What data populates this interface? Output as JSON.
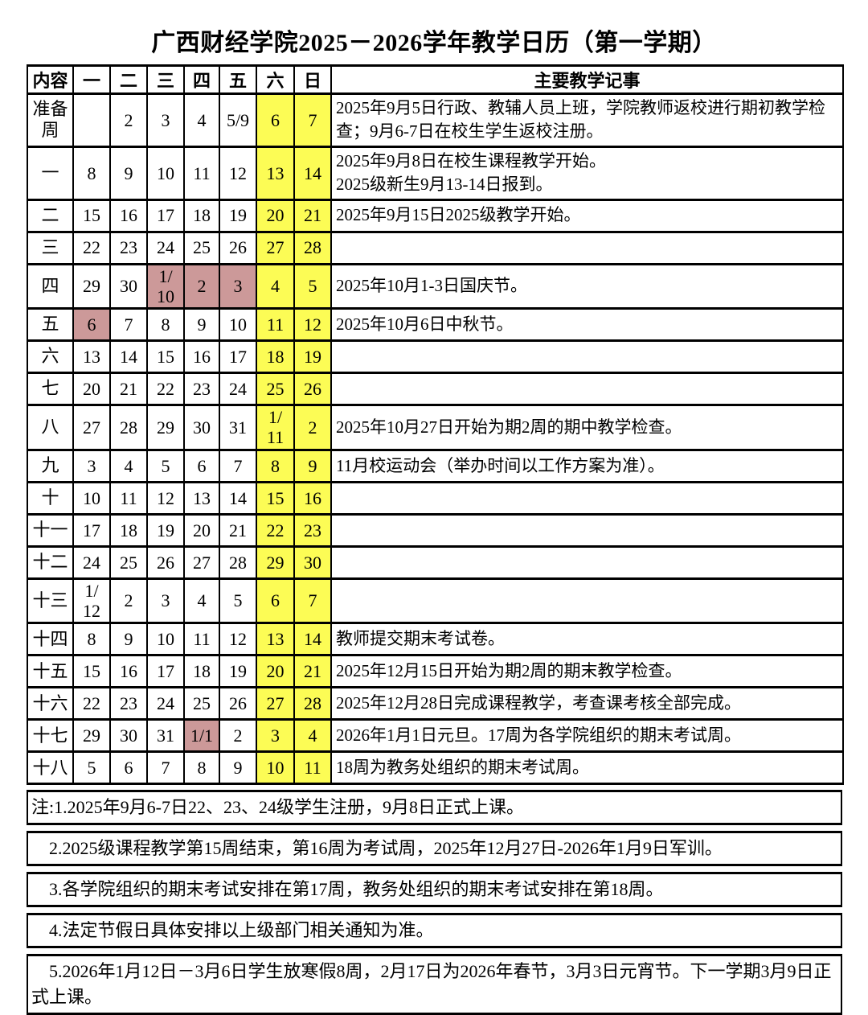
{
  "title": "广西财经学院2025－2026学年教学日历（第一学期）",
  "colors": {
    "highlight_yellow": "#FCFC55",
    "highlight_pink": "#CC9999",
    "border": "#000000",
    "background": "#FFFFFF"
  },
  "table": {
    "headers": [
      "内容",
      "一",
      "二",
      "三",
      "四",
      "五",
      "六",
      "日",
      "主要教学记事"
    ],
    "rows": [
      {
        "week": "准备周",
        "days": [
          "",
          "2",
          "3",
          "4",
          "5/9",
          "6",
          "7"
        ],
        "day_styles": [
          "",
          "",
          "",
          "",
          "",
          "yellow",
          "yellow"
        ],
        "note": "2025年9月5日行政、教辅人员上班，学院教师返校进行期初教学检查；9月6-7日在校生学生返校注册。"
      },
      {
        "week": "一",
        "days": [
          "8",
          "9",
          "10",
          "11",
          "12",
          "13",
          "14"
        ],
        "day_styles": [
          "",
          "",
          "",
          "",
          "",
          "yellow",
          "yellow"
        ],
        "note": "2025年9月8日在校生课程教学开始。\n2025级新生9月13-14日报到。"
      },
      {
        "week": "二",
        "days": [
          "15",
          "16",
          "17",
          "18",
          "19",
          "20",
          "21"
        ],
        "day_styles": [
          "",
          "",
          "",
          "",
          "",
          "yellow",
          "yellow"
        ],
        "note": "2025年9月15日2025级教学开始。"
      },
      {
        "week": "三",
        "days": [
          "22",
          "23",
          "24",
          "25",
          "26",
          "27",
          "28"
        ],
        "day_styles": [
          "",
          "",
          "",
          "",
          "",
          "yellow",
          "yellow"
        ],
        "note": ""
      },
      {
        "week": "四",
        "days": [
          "29",
          "30",
          "1/\n10",
          "2",
          "3",
          "4",
          "5"
        ],
        "day_styles": [
          "",
          "",
          "pink",
          "pink",
          "pink",
          "yellow",
          "yellow"
        ],
        "note": "2025年10月1-3日国庆节。"
      },
      {
        "week": "五",
        "days": [
          "6",
          "7",
          "8",
          "9",
          "10",
          "11",
          "12"
        ],
        "day_styles": [
          "pink",
          "",
          "",
          "",
          "",
          "yellow",
          "yellow"
        ],
        "note": "2025年10月6日中秋节。"
      },
      {
        "week": "六",
        "days": [
          "13",
          "14",
          "15",
          "16",
          "17",
          "18",
          "19"
        ],
        "day_styles": [
          "",
          "",
          "",
          "",
          "",
          "yellow",
          "yellow"
        ],
        "note": ""
      },
      {
        "week": "七",
        "days": [
          "20",
          "21",
          "22",
          "23",
          "24",
          "25",
          "26"
        ],
        "day_styles": [
          "",
          "",
          "",
          "",
          "",
          "yellow",
          "yellow"
        ],
        "note": ""
      },
      {
        "week": "八",
        "days": [
          "27",
          "28",
          "29",
          "30",
          "31",
          "1/\n11",
          "2"
        ],
        "day_styles": [
          "",
          "",
          "",
          "",
          "",
          "yellow",
          "yellow"
        ],
        "note": "2025年10月27日开始为期2周的期中教学检查。"
      },
      {
        "week": "九",
        "days": [
          "3",
          "4",
          "5",
          "6",
          "7",
          "8",
          "9"
        ],
        "day_styles": [
          "",
          "",
          "",
          "",
          "",
          "yellow",
          "yellow"
        ],
        "note": "11月校运动会（举办时间以工作方案为准）。"
      },
      {
        "week": "十",
        "days": [
          "10",
          "11",
          "12",
          "13",
          "14",
          "15",
          "16"
        ],
        "day_styles": [
          "",
          "",
          "",
          "",
          "",
          "yellow",
          "yellow"
        ],
        "note": ""
      },
      {
        "week": "十一",
        "days": [
          "17",
          "18",
          "19",
          "20",
          "21",
          "22",
          "23"
        ],
        "day_styles": [
          "",
          "",
          "",
          "",
          "",
          "yellow",
          "yellow"
        ],
        "note": ""
      },
      {
        "week": "十二",
        "days": [
          "24",
          "25",
          "26",
          "27",
          "28",
          "29",
          "30"
        ],
        "day_styles": [
          "",
          "",
          "",
          "",
          "",
          "yellow",
          "yellow"
        ],
        "note": ""
      },
      {
        "week": "十三",
        "days": [
          "1/\n12",
          "2",
          "3",
          "4",
          "5",
          "6",
          "7"
        ],
        "day_styles": [
          "",
          "",
          "",
          "",
          "",
          "yellow",
          "yellow"
        ],
        "note": ""
      },
      {
        "week": "十四",
        "days": [
          "8",
          "9",
          "10",
          "11",
          "12",
          "13",
          "14"
        ],
        "day_styles": [
          "",
          "",
          "",
          "",
          "",
          "yellow",
          "yellow"
        ],
        "note": "教师提交期末考试卷。"
      },
      {
        "week": "十五",
        "days": [
          "15",
          "16",
          "17",
          "18",
          "19",
          "20",
          "21"
        ],
        "day_styles": [
          "",
          "",
          "",
          "",
          "",
          "yellow",
          "yellow"
        ],
        "note": "2025年12月15日开始为期2周的期末教学检查。"
      },
      {
        "week": "十六",
        "days": [
          "22",
          "23",
          "24",
          "25",
          "26",
          "27",
          "28"
        ],
        "day_styles": [
          "",
          "",
          "",
          "",
          "",
          "yellow",
          "yellow"
        ],
        "note": "2025年12月28日完成课程教学，考查课考核全部完成。"
      },
      {
        "week": "十七",
        "days": [
          "29",
          "30",
          "31",
          "1/1",
          "2",
          "3",
          "4"
        ],
        "day_styles": [
          "",
          "",
          "",
          "pink",
          "",
          "yellow",
          "yellow"
        ],
        "note": "2026年1月1日元旦。17周为各学院组织的期末考试周。"
      },
      {
        "week": "十八",
        "days": [
          "5",
          "6",
          "7",
          "8",
          "9",
          "10",
          "11"
        ],
        "day_styles": [
          "",
          "",
          "",
          "",
          "",
          "yellow",
          "yellow"
        ],
        "note": "18周为教务处组织的期末考试周。"
      }
    ]
  },
  "footnotes": [
    "注:1.2025年9月6-7日22、23、24级学生注册，9月8日正式上课。",
    "    2.2025级课程教学第15周结束，第16周为考试周，2025年12月27日-2026年1月9日军训。",
    "    3.各学院组织的期末考试安排在第17周，教务处组织的期末考试安排在第18周。",
    "    4.法定节假日具体安排以上级部门相关通知为准。",
    "    5.2026年1月12日－3月6日学生放寒假8周，2月17日为2026年春节，3月3日元宵节。下一学期3月9日正式上课。"
  ]
}
